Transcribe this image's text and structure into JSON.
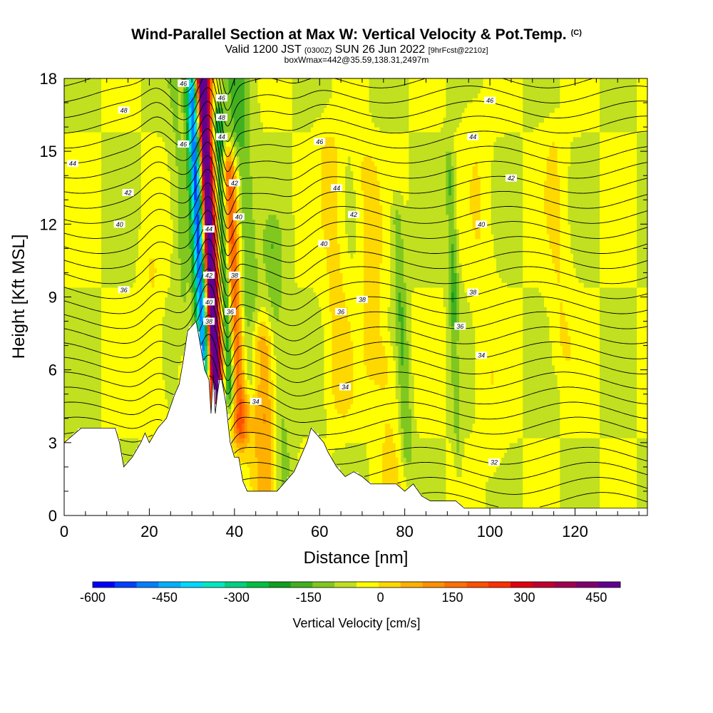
{
  "title": {
    "main": "Wind-Parallel Section at Max W: Vertical Velocity & Pot.Temp.",
    "copyright": "(C)",
    "valid_prefix": "Valid 1200 JST",
    "valid_utc": "(0300Z)",
    "valid_date": "SUN 26 Jun 2022",
    "forecast": "[9hrFcst@2210z]",
    "box_info": "boxWmax=442@35.59,138.31,2497m"
  },
  "chart_data": {
    "type": "heatmap",
    "xlabel": "Distance [nm]",
    "ylabel": "Height [Kft MSL]",
    "xlim": [
      0,
      137
    ],
    "ylim": [
      0,
      18
    ],
    "x_ticks": [
      0,
      20,
      40,
      60,
      80,
      100,
      120
    ],
    "y_ticks": [
      0,
      3,
      6,
      9,
      12,
      15,
      18
    ],
    "x_tick_labels": [
      "0",
      "20",
      "40",
      "60",
      "80",
      "100",
      "120"
    ],
    "y_tick_labels": [
      "0",
      "3",
      "6",
      "9",
      "12",
      "15",
      "18"
    ],
    "colorbar": {
      "title": "Vertical Velocity [cm/s]",
      "min": -600,
      "max": 500,
      "step": 50,
      "labels": [
        "-600",
        "-450",
        "-300",
        "-150",
        "0",
        "150",
        "300",
        "450"
      ],
      "label_values": [
        -600,
        -450,
        -300,
        -150,
        0,
        150,
        300,
        450
      ],
      "colors": [
        "#0000ff",
        "#0040ff",
        "#0080ff",
        "#00b0ff",
        "#00d8ff",
        "#00e8c0",
        "#00d080",
        "#00c040",
        "#10a020",
        "#40b020",
        "#80c820",
        "#c0e020",
        "#ffff00",
        "#ffd800",
        "#ffb000",
        "#ff9000",
        "#ff7000",
        "#ff5000",
        "#ff3000",
        "#e00010",
        "#c00030",
        "#a00050",
        "#800070",
        "#600090"
      ]
    },
    "terrain_kft": {
      "x": [
        0,
        4,
        6,
        8,
        10,
        12,
        13,
        14,
        16,
        18,
        19,
        20,
        22,
        24,
        26,
        27,
        28,
        29,
        30,
        31,
        32,
        33,
        34,
        34.5,
        35,
        35.5,
        36,
        36.5,
        37,
        38,
        39,
        40,
        41,
        42,
        43,
        44,
        45,
        46,
        48,
        50,
        52,
        54,
        56,
        57,
        58,
        60,
        61,
        62,
        64,
        66,
        68,
        70,
        72,
        74,
        76,
        78,
        80,
        82,
        84,
        86,
        88,
        90,
        92,
        94,
        96,
        98,
        100,
        104,
        108,
        112,
        116,
        120,
        126,
        132,
        137
      ],
      "y": [
        3.0,
        3.6,
        3.6,
        3.6,
        3.6,
        3.6,
        3.0,
        2.0,
        2.4,
        3.0,
        3.4,
        3.0,
        3.6,
        4.0,
        5.0,
        5.4,
        6.4,
        7.6,
        7.8,
        8.0,
        7.0,
        6.0,
        5.6,
        4.2,
        5.8,
        4.2,
        5.0,
        5.6,
        5.6,
        4.6,
        3.0,
        2.4,
        2.4,
        1.4,
        1.0,
        1.0,
        1.0,
        1.0,
        1.0,
        1.0,
        1.4,
        1.8,
        2.6,
        3.0,
        3.6,
        3.2,
        3.0,
        2.6,
        2.0,
        1.6,
        1.8,
        1.6,
        1.3,
        1.3,
        1.3,
        1.3,
        1.0,
        1.3,
        0.8,
        0.6,
        0.6,
        0.6,
        0.6,
        0.3,
        0.3,
        0.3,
        0.3,
        0.3,
        0.3,
        0.3,
        0.3,
        0.3,
        0.3,
        0.3,
        0.3
      ]
    },
    "velocity_features": [
      {
        "x": 35.5,
        "y0": 5.0,
        "y1": 18,
        "w": 1.2,
        "v": 450
      },
      {
        "x": 34.8,
        "y0": 6.0,
        "y1": 18,
        "w": 2.2,
        "v": 300
      },
      {
        "x": 33.3,
        "y0": 5.8,
        "y1": 18,
        "w": 1.0,
        "v": -550
      },
      {
        "x": 32.3,
        "y0": 7.0,
        "y1": 17,
        "w": 1.2,
        "v": -250
      },
      {
        "x": 38.8,
        "y0": 5.5,
        "y1": 16,
        "w": 1.0,
        "v": -300
      },
      {
        "x": 41.2,
        "y0": 4.0,
        "y1": 14,
        "w": 1.4,
        "v": 300
      },
      {
        "x": 43.5,
        "y0": 6.0,
        "y1": 18,
        "w": 2.0,
        "v": -120
      },
      {
        "x": 47.5,
        "y0": 1.0,
        "y1": 7,
        "w": 2.2,
        "v": 150
      },
      {
        "x": 51.5,
        "y0": 1.2,
        "y1": 11,
        "w": 1.6,
        "v": -80
      },
      {
        "x": 65.0,
        "y0": 5.0,
        "y1": 15,
        "w": 2.0,
        "v": 70
      },
      {
        "x": 73.0,
        "y0": 6.5,
        "y1": 14,
        "w": 2.0,
        "v": 80
      },
      {
        "x": 77.0,
        "y0": 0.5,
        "y1": 6,
        "w": 2.0,
        "v": 60
      },
      {
        "x": 80.5,
        "y0": 3.0,
        "y1": 12,
        "w": 1.0,
        "v": -100
      },
      {
        "x": 91.8,
        "y0": 9.0,
        "y1": 14,
        "w": 0.8,
        "v": -110
      },
      {
        "x": 92.5,
        "y0": 3.0,
        "y1": 9,
        "w": 0.6,
        "v": -70
      },
      {
        "x": 100.0,
        "y0": 3.0,
        "y1": 16,
        "w": 2.0,
        "v": 40
      },
      {
        "x": 117.0,
        "y0": 7.0,
        "y1": 15,
        "w": 2.0,
        "v": 50
      },
      {
        "x": 22.0,
        "y0": 4.0,
        "y1": 10,
        "w": 1.6,
        "v": 50
      },
      {
        "x": 28.5,
        "y0": 8.0,
        "y1": 18,
        "w": 1.4,
        "v": -60
      }
    ],
    "isotherm_labels": [
      {
        "text": "48",
        "x": 14,
        "y": 16.7
      },
      {
        "text": "46",
        "x": 28,
        "y": 17.8
      },
      {
        "text": "46",
        "x": 37,
        "y": 17.2
      },
      {
        "text": "46",
        "x": 100,
        "y": 17.1
      },
      {
        "text": "48",
        "x": 37,
        "y": 16.4
      },
      {
        "text": "46",
        "x": 28,
        "y": 15.3
      },
      {
        "text": "44",
        "x": 37,
        "y": 15.6
      },
      {
        "text": "46",
        "x": 60,
        "y": 15.4
      },
      {
        "text": "44",
        "x": 2,
        "y": 14.5
      },
      {
        "text": "44",
        "x": 96,
        "y": 15.6
      },
      {
        "text": "42",
        "x": 40,
        "y": 13.7
      },
      {
        "text": "44",
        "x": 64,
        "y": 13.5
      },
      {
        "text": "42",
        "x": 105,
        "y": 13.9
      },
      {
        "text": "42",
        "x": 15,
        "y": 13.3
      },
      {
        "text": "42",
        "x": 68,
        "y": 12.4
      },
      {
        "text": "40",
        "x": 13,
        "y": 12.0
      },
      {
        "text": "40",
        "x": 41,
        "y": 12.3
      },
      {
        "text": "44",
        "x": 34,
        "y": 11.8
      },
      {
        "text": "40",
        "x": 98,
        "y": 12.0
      },
      {
        "text": "40",
        "x": 61,
        "y": 11.2
      },
      {
        "text": "42",
        "x": 34,
        "y": 9.9
      },
      {
        "text": "38",
        "x": 40,
        "y": 9.9
      },
      {
        "text": "36",
        "x": 14,
        "y": 9.3
      },
      {
        "text": "38",
        "x": 70,
        "y": 8.9
      },
      {
        "text": "38",
        "x": 96,
        "y": 9.2
      },
      {
        "text": "40",
        "x": 34,
        "y": 8.8
      },
      {
        "text": "36",
        "x": 39,
        "y": 8.4
      },
      {
        "text": "36",
        "x": 65,
        "y": 8.4
      },
      {
        "text": "38",
        "x": 34,
        "y": 8.0
      },
      {
        "text": "36",
        "x": 93,
        "y": 7.8
      },
      {
        "text": "34",
        "x": 98,
        "y": 6.6
      },
      {
        "text": "34",
        "x": 66,
        "y": 5.3
      },
      {
        "text": "34",
        "x": 45,
        "y": 4.7
      },
      {
        "text": "32",
        "x": 101,
        "y": 2.2
      }
    ]
  }
}
